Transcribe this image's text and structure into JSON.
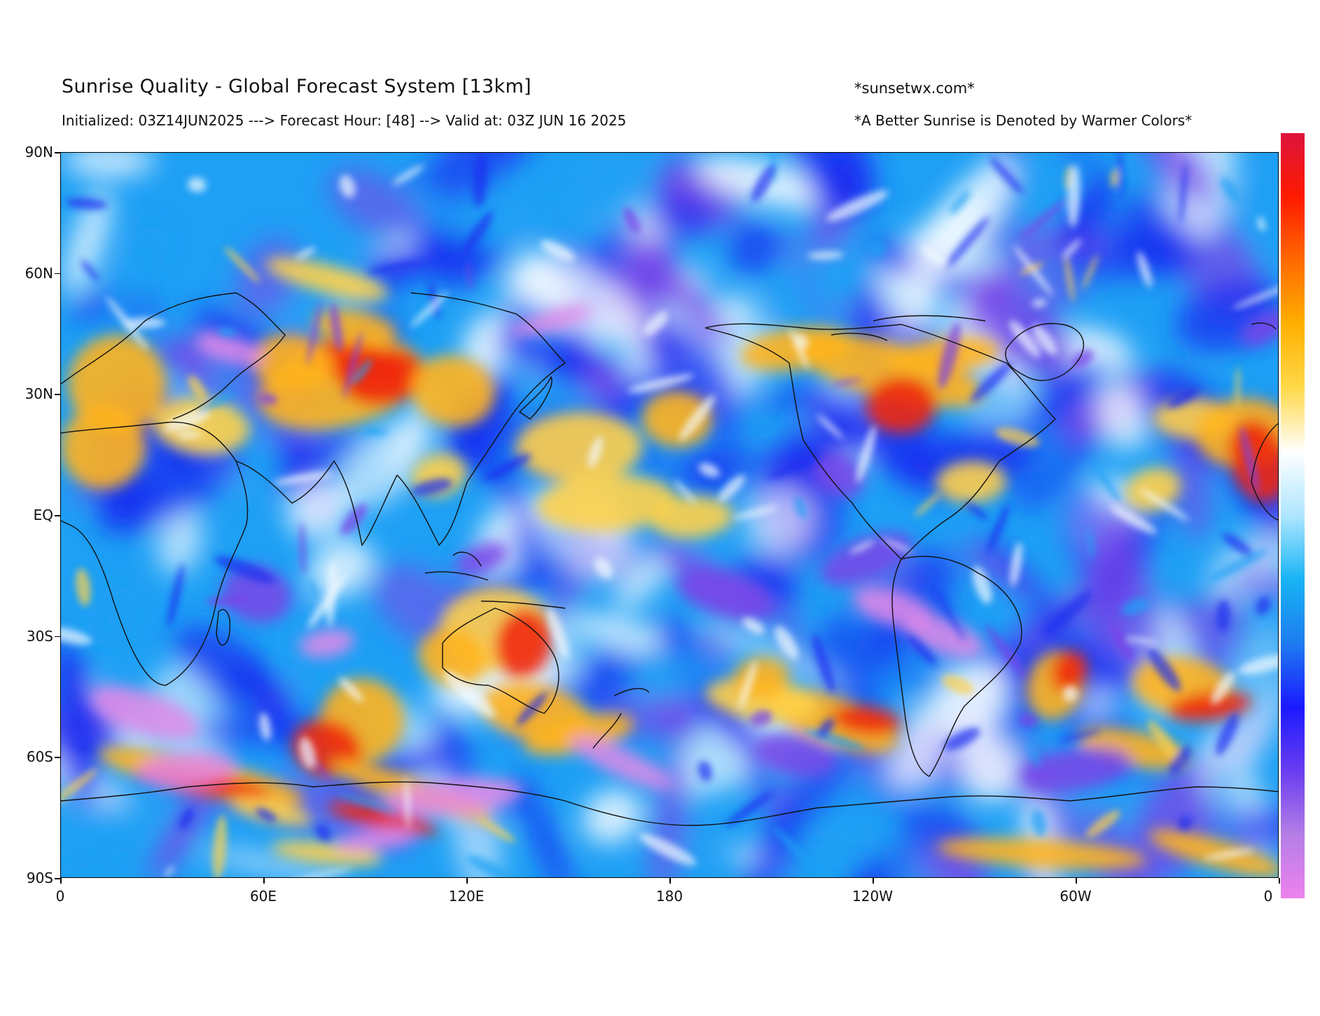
{
  "header": {
    "title": "Sunrise Quality - Global Forecast System [13km]",
    "subtitle": "Initialized: 03Z14JUN2025 ---> Forecast Hour: [48] --> Valid at: 03Z JUN 16 2025",
    "site": "*sunsetwx.com*",
    "note": "*A Better Sunrise is Denoted by Warmer Colors*"
  },
  "axes": {
    "lat_ticks": [
      "90N",
      "60N",
      "30N",
      "EQ",
      "30S",
      "60S",
      "90S"
    ],
    "lon_ticks": [
      "0",
      "60E",
      "120E",
      "180",
      "120W",
      "60W",
      "0"
    ]
  },
  "colorbar": {
    "stops": [
      "#dc143c",
      "#ff1a00",
      "#ff6a00",
      "#ffb000",
      "#ffd94a",
      "#ffffff",
      "#aee6ff",
      "#18b4f5",
      "#1e7cf0",
      "#1a1aff",
      "#6a3df0",
      "#b47ee6",
      "#ee82ee"
    ]
  },
  "map_colors": {
    "ocean_base": "#1ea0f5",
    "deep_blue": "#1a2cf0",
    "purple": "#7a45e8",
    "pink": "#e08ae8",
    "white": "#f4fbff",
    "orange": "#ffb41e",
    "yellow": "#ffd24a",
    "red": "#f02810",
    "coastline": "#111111"
  }
}
